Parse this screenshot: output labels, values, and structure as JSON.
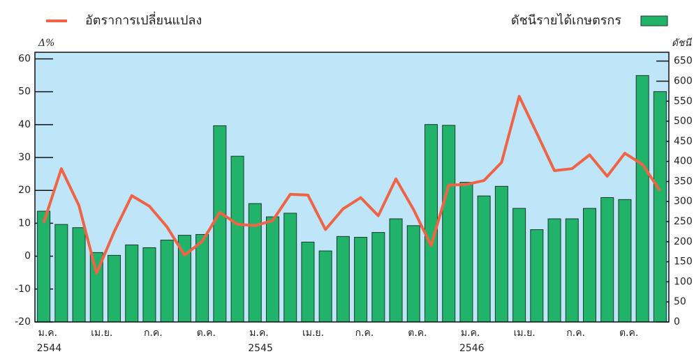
{
  "chart_data": {
    "type": "bar-line",
    "ylabel": "Δ%",
    "y2label": "ดัชนี",
    "categories": [
      "ม.ค.",
      null,
      null,
      "เม.ย.",
      null,
      null,
      "ก.ค.",
      null,
      null,
      "ต.ค.",
      null,
      null,
      "ม.ค.",
      null,
      null,
      "เม.ย.",
      null,
      null,
      "ก.ค.",
      null,
      null,
      "ต.ค.",
      null,
      null,
      "ม.ค.",
      null,
      null,
      "เม.ย.",
      null,
      null,
      "ก.ค.",
      null,
      null,
      "ต.ค.",
      null,
      null
    ],
    "category_groups": [
      "2544",
      "2545",
      "2546"
    ],
    "series": [
      {
        "name": "ดัชนีรายได้เกษตรกร",
        "color": "#22b36b",
        "axis": "y2",
        "kind": "bar",
        "values": [
          276,
          243,
          235,
          173,
          166,
          192,
          185,
          204,
          216,
          218,
          489,
          413,
          295,
          262,
          271,
          199,
          177,
          213,
          211,
          223,
          257,
          240,
          492,
          490,
          348,
          314,
          338,
          283,
          230,
          257,
          257,
          283,
          310,
          305,
          614,
          574
        ]
      },
      {
        "name": "อัตราการเปลี่ยนแปลง",
        "color": "#f06446",
        "axis": "y",
        "kind": "line",
        "values": [
          10.2,
          26.6,
          15.4,
          -5.2,
          7.4,
          18.4,
          15.2,
          8.9,
          0.3,
          4.5,
          13.3,
          9.7,
          9.3,
          10.8,
          18.8,
          18.6,
          8.1,
          14.4,
          17.8,
          12.3,
          23.5,
          14.2,
          3.2,
          21.6,
          21.8,
          23.0,
          28.5,
          48.6,
          37.4,
          26.0,
          26.6,
          30.8,
          24.3,
          31.3,
          27.9,
          19.9
        ]
      }
    ],
    "ylim": [
      -20,
      62
    ],
    "yticks": [
      -20,
      -10,
      0,
      10,
      20,
      30,
      40,
      50,
      60
    ],
    "y2lim": [
      0,
      672
    ],
    "y2ticks": [
      0,
      50,
      100,
      150,
      200,
      250,
      300,
      350,
      400,
      450,
      500,
      550,
      600,
      650
    ],
    "background": "#bee6f8"
  }
}
